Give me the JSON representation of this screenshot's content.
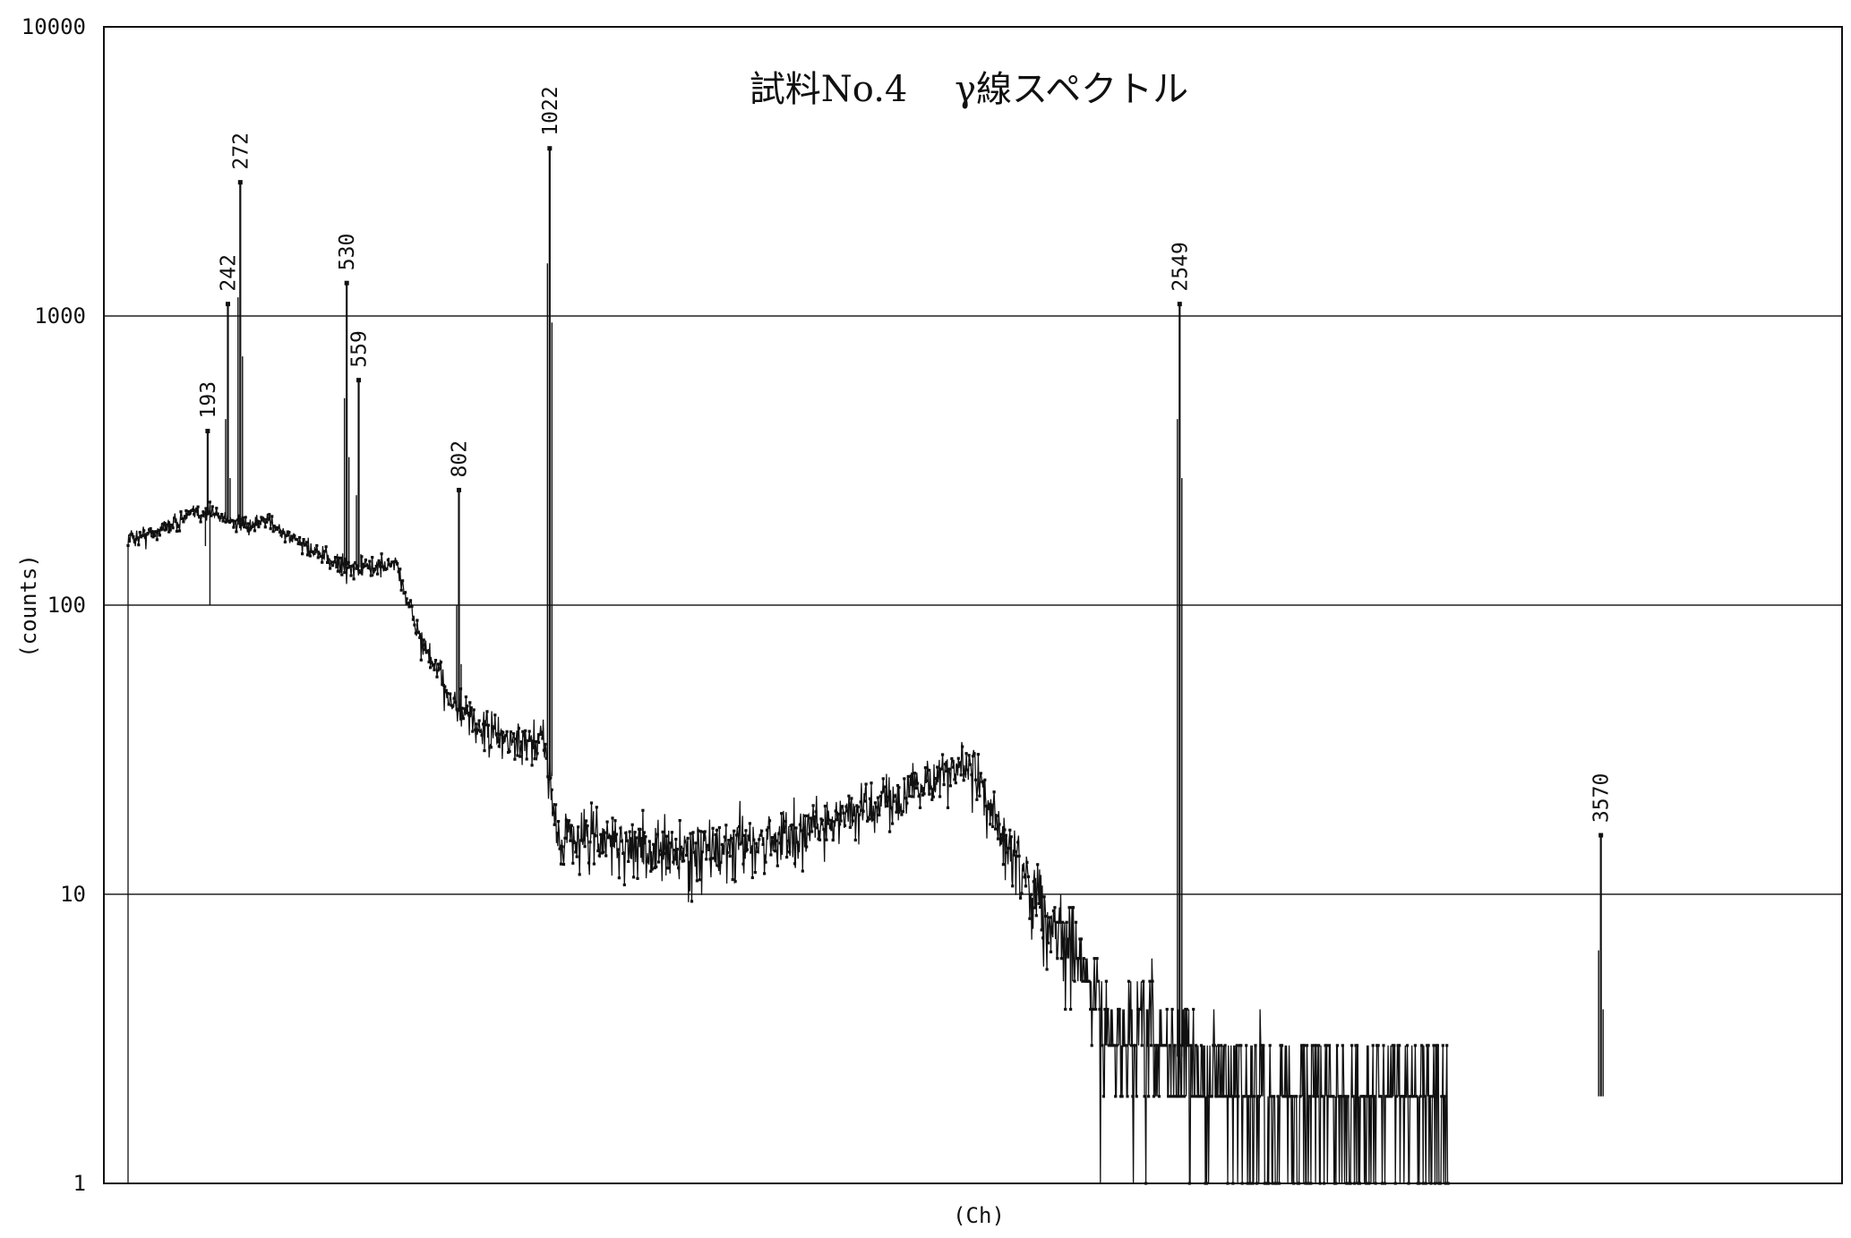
{
  "chart_data": {
    "type": "scatter",
    "title": "試料No.4　 γ線スペクトル",
    "xlabel": "(Ch)",
    "ylabel": "(counts)",
    "y_scale": "log",
    "ylim": [
      1,
      10000
    ],
    "xlim": [
      0,
      4096
    ],
    "grid": "horizontal",
    "y_ticks": [
      "1",
      "10",
      "100",
      "1000",
      "10000"
    ],
    "y_tick_values": [
      1,
      10,
      100,
      1000,
      10000
    ],
    "peaks": [
      {
        "label": "193",
        "x": 193,
        "y": 400
      },
      {
        "label": "242",
        "x": 242,
        "y": 1100
      },
      {
        "label": "272",
        "x": 272,
        "y": 2900
      },
      {
        "label": "530",
        "x": 530,
        "y": 1300
      },
      {
        "label": "559",
        "x": 559,
        "y": 600
      },
      {
        "label": "802",
        "x": 802,
        "y": 250
      },
      {
        "label": "1022",
        "x": 1022,
        "y": 3800
      },
      {
        "label": "2549",
        "x": 2549,
        "y": 1100
      },
      {
        "label": "3570",
        "x": 3570,
        "y": 16
      }
    ],
    "continuum": [
      [
        0,
        170
      ],
      [
        50,
        175
      ],
      [
        100,
        190
      ],
      [
        150,
        205
      ],
      [
        200,
        210
      ],
      [
        240,
        200
      ],
      [
        270,
        190
      ],
      [
        300,
        185
      ],
      [
        340,
        200
      ],
      [
        380,
        175
      ],
      [
        420,
        165
      ],
      [
        460,
        150
      ],
      [
        500,
        140
      ],
      [
        550,
        135
      ],
      [
        600,
        135
      ],
      [
        650,
        140
      ],
      [
        680,
        100
      ],
      [
        720,
        70
      ],
      [
        760,
        55
      ],
      [
        800,
        43
      ],
      [
        860,
        37
      ],
      [
        920,
        34
      ],
      [
        980,
        32
      ],
      [
        1010,
        35
      ],
      [
        1040,
        16
      ],
      [
        1100,
        16
      ],
      [
        1200,
        15
      ],
      [
        1300,
        14
      ],
      [
        1400,
        14
      ],
      [
        1500,
        15
      ],
      [
        1600,
        16
      ],
      [
        1700,
        18
      ],
      [
        1800,
        20
      ],
      [
        1900,
        23
      ],
      [
        2000,
        27
      ],
      [
        2050,
        27
      ],
      [
        2100,
        18
      ],
      [
        2200,
        10
      ],
      [
        2300,
        6
      ],
      [
        2350,
        4
      ],
      [
        2400,
        3
      ],
      [
        2500,
        3
      ],
      [
        2600,
        2.5
      ],
      [
        2700,
        2.2
      ],
      [
        2800,
        2
      ],
      [
        2900,
        2
      ],
      [
        3000,
        2
      ],
      [
        3100,
        2
      ],
      [
        3200,
        2
      ]
    ]
  }
}
